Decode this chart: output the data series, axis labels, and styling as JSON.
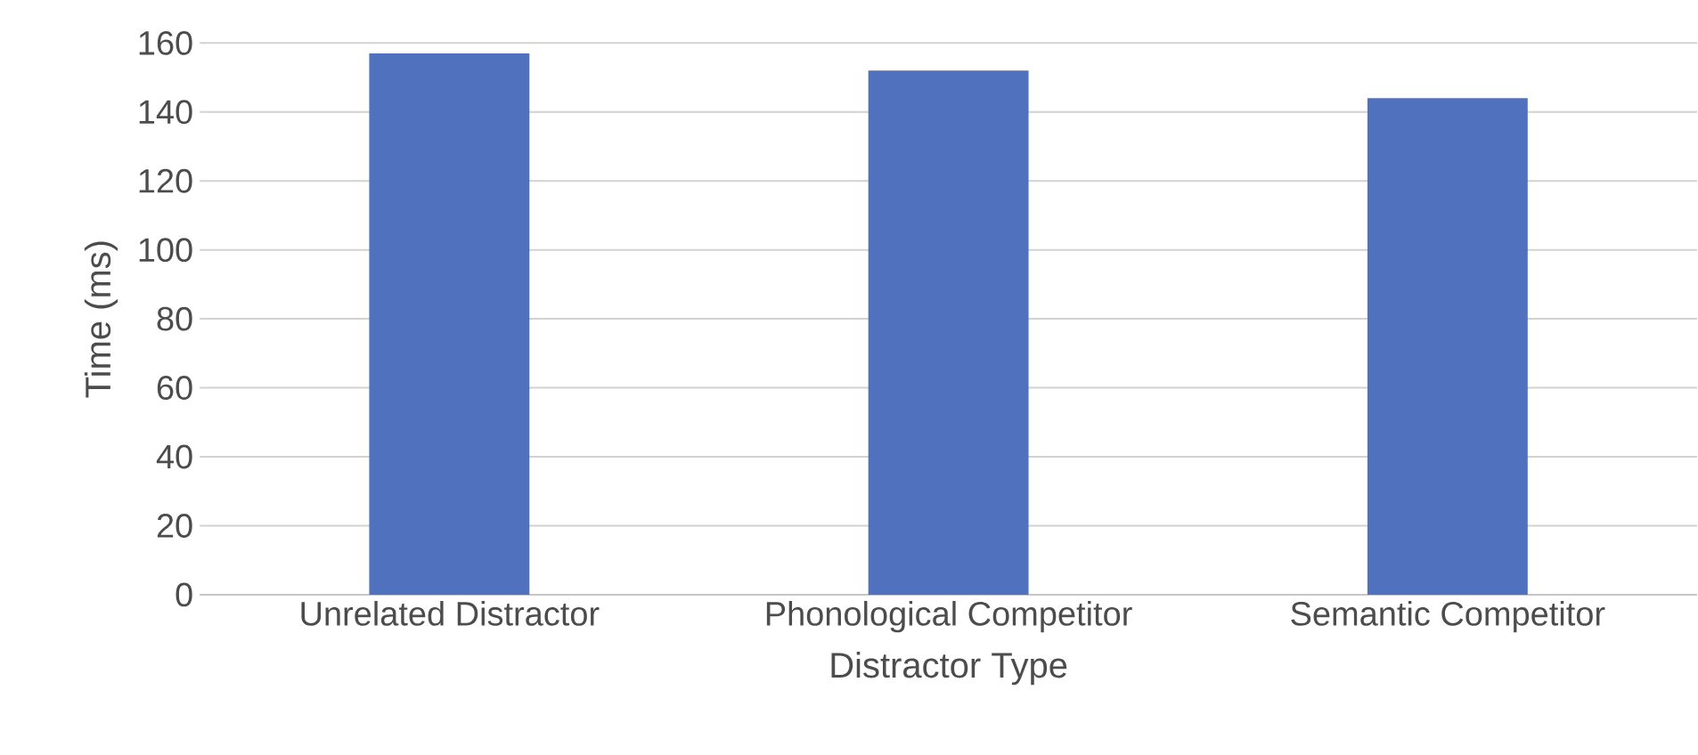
{
  "chart_data": {
    "type": "bar",
    "xlabel": "Distractor Type",
    "ylabel": "Time (ms)",
    "categories": [
      "Unrelated Distractor",
      "Phonological Competitor",
      "Semantic Competitor"
    ],
    "values": [
      157,
      152,
      144
    ],
    "color": "#4f71be",
    "ylim": [
      0,
      160
    ],
    "yticks": [
      0,
      20,
      40,
      60,
      80,
      100,
      120,
      140,
      160
    ],
    "grid": "y"
  }
}
